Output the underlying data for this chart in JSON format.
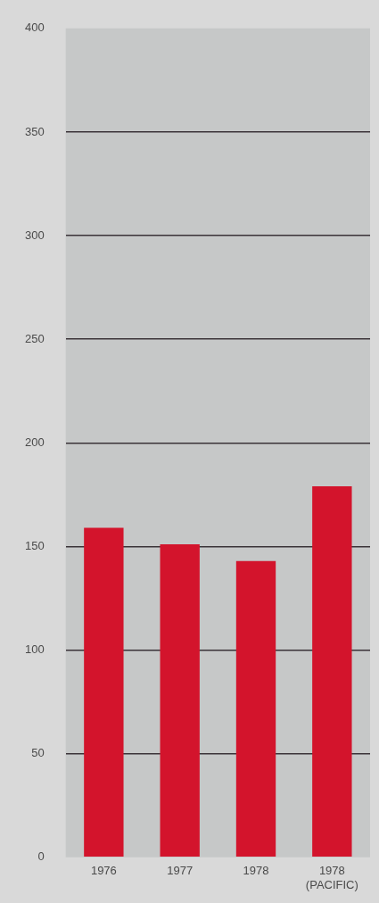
{
  "chart_data": {
    "type": "bar",
    "categories": [
      "1976",
      "1977",
      "1978",
      "1978 (PACIFIC)"
    ],
    "values": [
      159,
      151,
      143,
      179
    ],
    "color": "#d3142c",
    "ylim": [
      0,
      400
    ],
    "yticks": [
      0,
      50,
      100,
      150,
      200,
      250,
      300,
      350,
      400
    ],
    "grid": "y"
  }
}
